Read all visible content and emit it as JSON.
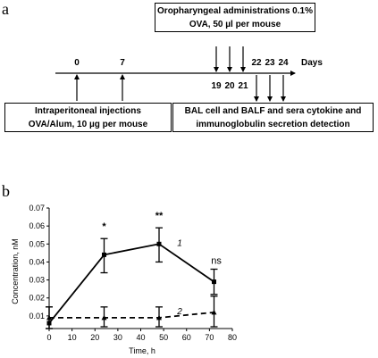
{
  "panel_a": {
    "label": "a",
    "top_box": {
      "line1": "Oropharyngeal administrations 0.1%",
      "line2": "OVA, 50 µl per mouse"
    },
    "left_box": {
      "line1": "Intraperitoneal injections",
      "line2": "OVA/Alum, 10 µg per mouse"
    },
    "right_box": {
      "line1": "BAL cell and BALF and sera cytokine and",
      "line2": "immunoglobulin secretion detection"
    },
    "timeline": {
      "unit_label": "Days",
      "top_days": [
        "0",
        "7",
        "22",
        "23",
        "24"
      ],
      "bottom_days": [
        "19",
        "20",
        "21"
      ]
    }
  },
  "panel_b": {
    "label": "b"
  },
  "chart_data": {
    "type": "line",
    "xlabel": "Time, h",
    "ylabel": "Concentration, nM",
    "xlim": [
      0,
      80
    ],
    "ylim": [
      0.003,
      0.07
    ],
    "x_ticks": [
      0,
      10,
      20,
      30,
      40,
      50,
      60,
      70,
      80
    ],
    "y_ticks": [
      0.01,
      0.02,
      0.03,
      0.04,
      0.05,
      0.06,
      0.07
    ],
    "series": [
      {
        "name": "1",
        "style": "solid",
        "marker": "square",
        "x": [
          0,
          24,
          48,
          72
        ],
        "y": [
          0.006,
          0.044,
          0.05,
          0.029
        ],
        "err_low": [
          0.003,
          0.034,
          0.04,
          0.022
        ],
        "err_high": [
          0.015,
          0.053,
          0.059,
          0.036
        ]
      },
      {
        "name": "2",
        "style": "dashed",
        "marker": "triangle",
        "x": [
          0,
          24,
          48,
          72
        ],
        "y": [
          0.009,
          0.009,
          0.009,
          0.012
        ],
        "err_low": [
          0.003,
          0.004,
          0.004,
          0.004
        ],
        "err_high": [
          0.015,
          0.015,
          0.015,
          0.021
        ]
      }
    ],
    "annotations": [
      {
        "x": 24,
        "y": 0.058,
        "text": "*"
      },
      {
        "x": 48,
        "y": 0.064,
        "text": "**"
      },
      {
        "x": 73,
        "y": 0.039,
        "text": "ns"
      }
    ],
    "grid": false,
    "legend": "inline labels"
  }
}
